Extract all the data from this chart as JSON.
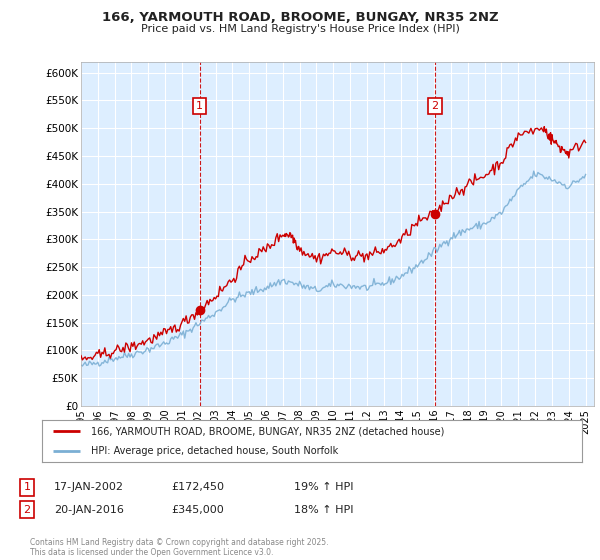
{
  "title": "166, YARMOUTH ROAD, BROOME, BUNGAY, NR35 2NZ",
  "subtitle": "Price paid vs. HM Land Registry's House Price Index (HPI)",
  "ylabel_ticks": [
    0,
    50000,
    100000,
    150000,
    200000,
    250000,
    300000,
    350000,
    400000,
    450000,
    500000,
    550000,
    600000
  ],
  "ylabel_labels": [
    "£0",
    "£50K",
    "£100K",
    "£150K",
    "£200K",
    "£250K",
    "£300K",
    "£350K",
    "£400K",
    "£450K",
    "£500K",
    "£550K",
    "£600K"
  ],
  "ylim": [
    0,
    620000
  ],
  "xlim_start": 1995.0,
  "xlim_end": 2025.5,
  "purchase1_x": 2002.05,
  "purchase1_y": 172450,
  "purchase2_x": 2016.05,
  "purchase2_y": 345000,
  "purchase1_date": "17-JAN-2002",
  "purchase1_price": "£172,450",
  "purchase1_hpi": "19% ↑ HPI",
  "purchase2_date": "20-JAN-2016",
  "purchase2_price": "£345,000",
  "purchase2_hpi": "18% ↑ HPI",
  "legend_line1": "166, YARMOUTH ROAD, BROOME, BUNGAY, NR35 2NZ (detached house)",
  "legend_line2": "HPI: Average price, detached house, South Norfolk",
  "footer": "Contains HM Land Registry data © Crown copyright and database right 2025.\nThis data is licensed under the Open Government Licence v3.0.",
  "red_color": "#cc0000",
  "blue_color": "#7bafd4",
  "chart_bg": "#ddeeff",
  "bg_color": "#ffffff",
  "grid_color": "#ffffff"
}
